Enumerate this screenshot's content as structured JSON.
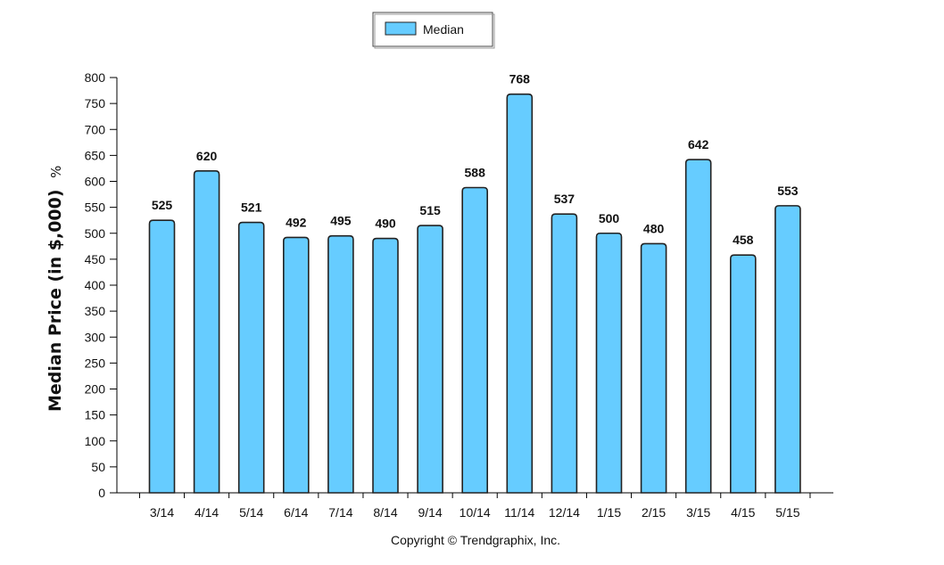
{
  "chart_data": {
    "type": "bar",
    "categories": [
      "3/14",
      "4/14",
      "5/14",
      "6/14",
      "7/14",
      "8/14",
      "9/14",
      "10/14",
      "11/14",
      "12/14",
      "1/15",
      "2/15",
      "3/15",
      "4/15",
      "5/15"
    ],
    "series": [
      {
        "name": "Median",
        "values": [
          525,
          620,
          521,
          492,
          495,
          490,
          515,
          588,
          768,
          537,
          500,
          480,
          642,
          458,
          553
        ]
      }
    ],
    "title": "",
    "xlabel": "",
    "ylabel": "Median Price (in $,000)",
    "ylabel_suffix": "%",
    "ylim": [
      0,
      800
    ],
    "yticks": [
      0,
      50,
      100,
      150,
      200,
      250,
      300,
      350,
      400,
      450,
      500,
      550,
      600,
      650,
      700,
      750,
      800
    ],
    "grid": false,
    "legend_position": "top-center",
    "bar_color": "#66CCFF",
    "bar_edge_color": "#222222"
  },
  "footer": {
    "copyright": "Copyright © Trendgraphix, Inc."
  }
}
